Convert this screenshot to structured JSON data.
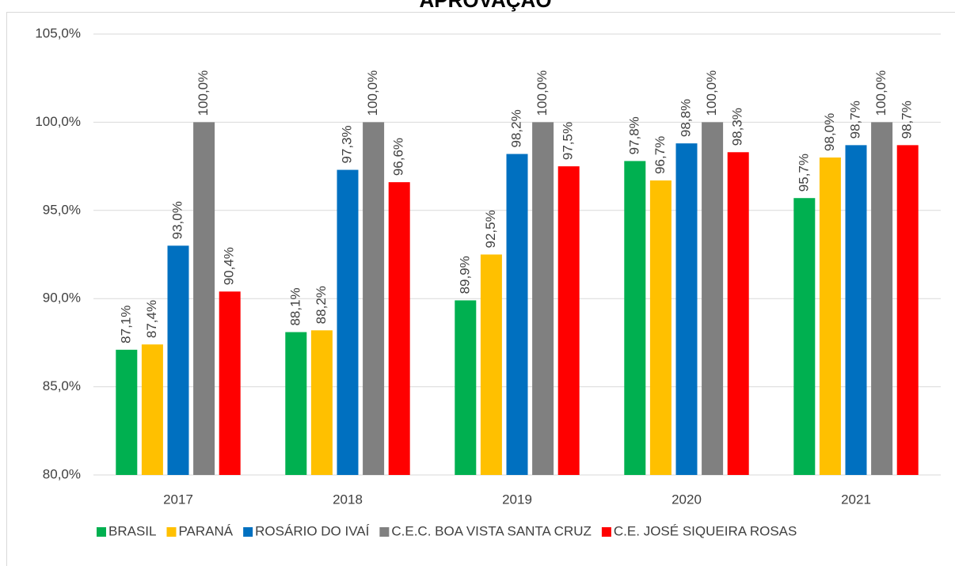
{
  "chart_data": {
    "type": "bar",
    "title": "APROVAÇÃO",
    "categories": [
      "2017",
      "2018",
      "2019",
      "2020",
      "2021"
    ],
    "series": [
      {
        "name": "BRASIL",
        "color": "#00b050",
        "values": [
          87.1,
          88.1,
          89.9,
          97.8,
          95.7
        ],
        "value_labels": [
          "87,1%",
          "88,1%",
          "89,9%",
          "97,8%",
          "95,7%"
        ]
      },
      {
        "name": "PARANÁ",
        "color": "#ffc000",
        "values": [
          87.4,
          88.2,
          92.5,
          96.7,
          98.0
        ],
        "value_labels": [
          "87,4%",
          "88,2%",
          "92,5%",
          "96,7%",
          "98,0%"
        ]
      },
      {
        "name": "ROSÁRIO DO IVAÍ",
        "color": "#0070c0",
        "values": [
          93.0,
          97.3,
          98.2,
          98.8,
          98.7
        ],
        "value_labels": [
          "93,0%",
          "97,3%",
          "98,2%",
          "98,8%",
          "98,7%"
        ]
      },
      {
        "name": "C.E.C. BOA VISTA SANTA CRUZ",
        "color": "#808080",
        "values": [
          100.0,
          100.0,
          100.0,
          100.0,
          100.0
        ],
        "value_labels": [
          "100,0%",
          "100,0%",
          "100,0%",
          "100,0%",
          "100,0%"
        ]
      },
      {
        "name": "C.E. JOSÉ SIQUEIRA ROSAS",
        "color": "#ff0000",
        "values": [
          90.4,
          96.6,
          97.5,
          98.3,
          98.7
        ],
        "value_labels": [
          "90,4%",
          "96,6%",
          "97,5%",
          "98,3%",
          "98,7%"
        ]
      }
    ],
    "ylim": [
      80,
      105
    ],
    "yticks": [
      {
        "value": 80,
        "label": "80,0%"
      },
      {
        "value": 85,
        "label": "85,0%"
      },
      {
        "value": 90,
        "label": "90,0%"
      },
      {
        "value": 95,
        "label": "95,0%"
      },
      {
        "value": 100,
        "label": "100,0%"
      },
      {
        "value": 105,
        "label": "105,0%"
      }
    ],
    "grid": true,
    "legend": "bottom"
  }
}
